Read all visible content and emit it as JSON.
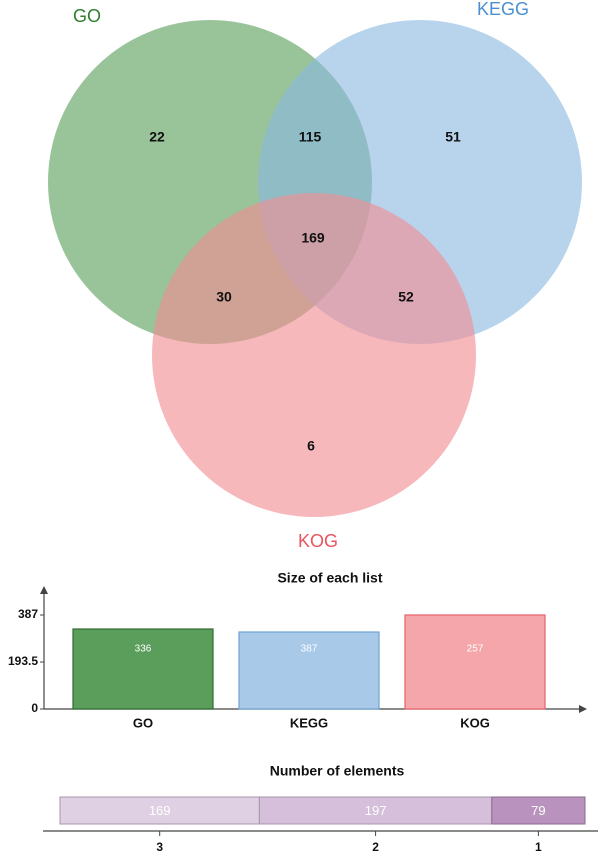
{
  "chart_data": [
    {
      "type": "venn",
      "sets": [
        {
          "name": "GO",
          "color": "#5b9e5b",
          "label_color": "#2e7d2e"
        },
        {
          "name": "KEGG",
          "color": "#8ab9e0",
          "label_color": "#4a90d0"
        },
        {
          "name": "KOG",
          "color": "#f28c93",
          "label_color": "#e8555f"
        }
      ],
      "regions": [
        {
          "sets": [
            "GO"
          ],
          "value": 22
        },
        {
          "sets": [
            "GO",
            "KEGG"
          ],
          "value": 115
        },
        {
          "sets": [
            "KEGG"
          ],
          "value": 51
        },
        {
          "sets": [
            "GO",
            "KEGG",
            "KOG"
          ],
          "value": 169
        },
        {
          "sets": [
            "GO",
            "KOG"
          ],
          "value": 30
        },
        {
          "sets": [
            "KEGG",
            "KOG"
          ],
          "value": 52
        },
        {
          "sets": [
            "KOG"
          ],
          "value": 6
        }
      ]
    },
    {
      "type": "bar",
      "title": "Size of each list",
      "categories": [
        "GO",
        "KEGG",
        "KOG"
      ],
      "values": [
        336,
        387,
        257
      ],
      "colors": [
        "#5b9e5b",
        "#a8c9e8",
        "#f5a6ab"
      ],
      "border_colors": [
        "#2f6b2f",
        "#6fa2d0",
        "#e8626c"
      ],
      "yticks": [
        "387",
        "193.5",
        "0"
      ],
      "ylim": [
        0,
        387
      ]
    },
    {
      "type": "bar",
      "orientation": "horizontal-stacked",
      "title": "Number of elements",
      "categories": [
        "3",
        "2",
        "1"
      ],
      "values": [
        169,
        197,
        79
      ],
      "colors": [
        "#e0d0e3",
        "#d5bfda",
        "#b993bd"
      ],
      "border_colors": [
        "#a996ad",
        "#a996ad",
        "#8a6b8e"
      ]
    }
  ]
}
